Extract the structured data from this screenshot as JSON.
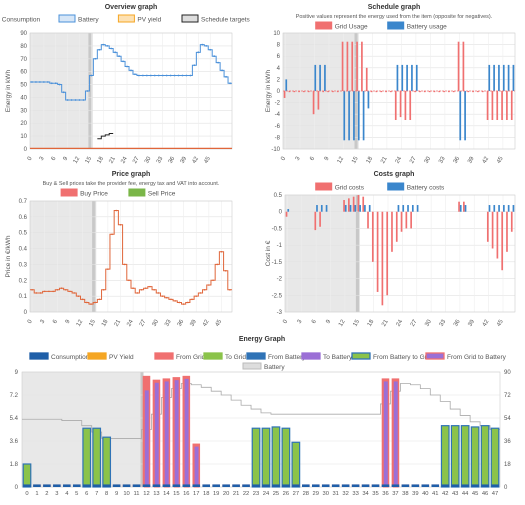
{
  "colors": {
    "consumption": "#1f5fa8",
    "battery": "#4a90d9",
    "pv": "#f5a623",
    "schedule": "#222222",
    "grid": "#f07070",
    "battery_usage": "#3a86cc",
    "buy": "#e0663a",
    "sell": "#7ab648",
    "from_grid": "#f07070",
    "to_grid": "#8bc34a",
    "from_battery": "#2f73b6",
    "to_battery": "#9b6fd6",
    "shade": "#e8e8e8",
    "now": "#c8c8c8"
  },
  "chart_data": [
    {
      "id": "overview",
      "type": "line",
      "title": "Overview graph",
      "subtitle": "",
      "ylabel": "Energy in kWh",
      "ylim": [
        0,
        90
      ],
      "yticks": [
        0,
        10,
        20,
        30,
        40,
        50,
        60,
        70,
        80,
        90
      ],
      "xticks": [
        "0",
        "3",
        "6",
        "9",
        "12",
        "15",
        "18",
        "21",
        "24",
        "27",
        "30",
        "33",
        "36",
        "39",
        "42",
        "45"
      ],
      "legend": [
        "Consumption",
        "Battery",
        "PV yield",
        "Schedule targets"
      ],
      "series": [
        {
          "name": "Battery",
          "values": [
            52,
            52,
            52,
            52,
            52,
            51,
            51,
            50,
            44,
            38,
            38,
            38,
            38,
            38,
            45,
            57,
            70,
            77,
            81,
            80,
            78,
            75,
            72,
            68,
            64,
            61,
            58,
            57,
            57,
            57,
            57,
            57,
            57,
            57,
            57,
            57,
            57,
            57,
            57,
            57,
            57,
            65,
            75,
            81,
            80,
            77,
            72,
            67,
            61,
            56,
            51
          ]
        },
        {
          "name": "Schedule targets",
          "values": [
            null,
            null,
            null,
            null,
            null,
            null,
            null,
            null,
            null,
            null,
            null,
            null,
            null,
            null,
            null,
            null,
            null,
            8,
            10,
            11,
            12,
            null,
            null,
            null,
            null,
            null,
            null,
            null,
            null,
            null,
            null,
            null,
            null,
            null,
            null,
            null,
            null,
            null,
            null,
            null,
            null,
            null,
            null,
            null,
            null,
            null,
            null,
            null,
            null,
            null,
            null
          ]
        },
        {
          "name": "Consumption",
          "values": [
            0.5,
            0.5,
            0.5,
            0.5,
            0.5,
            0.5,
            0.5,
            0.5,
            0.5,
            0.5,
            0.5,
            0.5,
            0.5,
            0.5,
            0.5,
            0.5,
            0.5,
            0.5,
            0.5,
            0.5,
            0.5,
            0.5,
            0.5,
            0.5,
            0.5,
            0.5,
            0.5,
            0.5,
            0.5,
            0.5,
            0.5,
            0.5,
            0.5,
            0.5,
            0.5,
            0.5,
            0.5,
            0.5,
            0.5,
            0.5,
            0.5,
            0.5,
            0.5,
            0.5,
            0.5,
            0.5,
            0.5,
            0.5,
            0.5,
            0.5,
            0.5
          ]
        }
      ]
    },
    {
      "id": "schedule",
      "type": "bar",
      "title": "Schedule graph",
      "subtitle": "Positive values represent the energy used from the item (opposite for negatives).",
      "ylabel": "Energy in kWh",
      "ylim": [
        -10,
        10
      ],
      "yticks": [
        -10,
        -8,
        -6,
        -4,
        -2,
        0,
        2,
        4,
        6,
        8,
        10
      ],
      "xticks": [
        "0",
        "3",
        "6",
        "9",
        "12",
        "15",
        "18",
        "21",
        "24",
        "27",
        "30",
        "33",
        "36",
        "39",
        "42",
        "45"
      ],
      "legend": [
        "Grid Usage",
        "Battery usage"
      ],
      "series": [
        {
          "name": "Grid Usage",
          "values": [
            -1.2,
            -0.2,
            -0.2,
            -0.2,
            -0.2,
            -0.2,
            -4,
            -3.2,
            -0.2,
            -0.2,
            -0.2,
            -0.2,
            8.5,
            8.5,
            8.5,
            8.5,
            8.5,
            4,
            -0.2,
            -0.2,
            -0.2,
            -0.2,
            -0.2,
            -5,
            -4.5,
            -5,
            -5,
            -0.2,
            -0.2,
            -0.2,
            -0.2,
            -0.2,
            -0.2,
            -0.2,
            -0.2,
            -0.2,
            8.5,
            8.5,
            -0.2,
            -0.2,
            -0.2,
            -0.2,
            -5,
            -5,
            -5,
            -5,
            -5,
            -5
          ]
        },
        {
          "name": "Battery usage",
          "values": [
            2,
            0,
            0,
            0,
            0,
            0,
            4.5,
            4.5,
            4.5,
            0,
            0,
            0,
            -8.5,
            -8.5,
            -8.5,
            -8.5,
            -8.5,
            -3,
            0,
            0,
            0,
            0,
            0,
            4.5,
            4.5,
            4.5,
            4.5,
            4.5,
            0,
            0,
            0,
            0,
            0,
            0,
            0,
            0,
            -8.5,
            -8.5,
            0,
            0,
            0,
            0,
            4.5,
            4.5,
            4.5,
            4.5,
            4.5,
            4.5
          ]
        }
      ]
    },
    {
      "id": "price",
      "type": "line",
      "title": "Price graph",
      "subtitle": "Buy & Sell prices take the provider fee, energy tax and VAT into account.",
      "ylabel": "Price in €/kWh",
      "ylim": [
        0,
        0.7
      ],
      "yticks": [
        0,
        0.1,
        0.2,
        0.3,
        0.4,
        0.5,
        0.6,
        0.7
      ],
      "xticks": [
        "0",
        "3",
        "6",
        "9",
        "12",
        "15",
        "18",
        "21",
        "24",
        "27",
        "30",
        "33",
        "36",
        "39",
        "42",
        "45"
      ],
      "legend": [
        "Buy Price",
        "Sell Price"
      ],
      "series": [
        {
          "name": "Buy Price",
          "values": [
            0.14,
            0.12,
            0.12,
            0.13,
            0.13,
            0.13,
            0.14,
            0.15,
            0.14,
            0.13,
            0.12,
            0.1,
            0.08,
            0.06,
            0.05,
            0.06,
            0.08,
            0.14,
            0.27,
            0.49,
            0.64,
            0.55,
            0.3,
            0.2,
            0.15,
            0.12,
            0.14,
            0.15,
            0.16,
            0.14,
            0.12,
            0.1,
            0.09,
            0.08,
            0.07,
            0.06,
            0.05,
            0.06,
            0.08,
            0.1,
            0.12,
            0.14,
            0.17,
            0.2,
            0.3,
            0.38,
            0.26,
            0.14
          ]
        },
        {
          "name": "Sell Price",
          "values": [
            0.14,
            0.12,
            0.12,
            0.13,
            0.13,
            0.13,
            0.14,
            0.15,
            0.14,
            0.13,
            0.12,
            0.1,
            0.08,
            0.06,
            0.05,
            0.06,
            0.08,
            0.14,
            0.27,
            0.49,
            0.64,
            0.55,
            0.3,
            0.2,
            0.15,
            0.12,
            0.14,
            0.15,
            0.16,
            0.14,
            0.12,
            0.1,
            0.09,
            0.08,
            0.07,
            0.06,
            0.05,
            0.06,
            0.08,
            0.1,
            0.12,
            0.14,
            0.17,
            0.2,
            0.3,
            0.38,
            0.26,
            0.14
          ]
        }
      ]
    },
    {
      "id": "costs",
      "type": "bar",
      "title": "Costs graph",
      "subtitle": "",
      "ylabel": "Cost in €",
      "ylim": [
        -3,
        0.5
      ],
      "yticks": [
        -3,
        -2.5,
        -2,
        -1.5,
        -1,
        -0.5,
        0,
        0.5
      ],
      "xticks": [
        "0",
        "3",
        "6",
        "9",
        "12",
        "15",
        "18",
        "21",
        "24",
        "27",
        "30",
        "33",
        "36",
        "39",
        "42",
        "45"
      ],
      "legend": [
        "Grid costs",
        "Battery costs"
      ],
      "series": [
        {
          "name": "Grid costs",
          "values": [
            -0.15,
            0,
            0,
            0,
            0,
            0,
            -0.55,
            -0.45,
            0,
            0,
            0,
            0,
            0.35,
            0.4,
            0.45,
            0.5,
            0.45,
            -0.5,
            -1.5,
            -2.4,
            -2.8,
            -2.5,
            -1.2,
            -0.9,
            -0.6,
            -0.5,
            -0.5,
            0,
            0,
            0,
            0,
            0,
            0,
            0,
            0,
            0,
            0.3,
            0.3,
            0,
            0,
            0,
            0,
            -0.9,
            -1.1,
            -1.4,
            -1.75,
            -1.2,
            -0.6
          ]
        },
        {
          "name": "Battery costs",
          "values": [
            0.08,
            0,
            0,
            0,
            0,
            0,
            0.2,
            0.2,
            0.2,
            0,
            0,
            0,
            0.2,
            0.2,
            0.2,
            0.2,
            0.2,
            0.2,
            0,
            0,
            0,
            0,
            0,
            0.2,
            0.2,
            0.2,
            0.2,
            0.2,
            0,
            0,
            0,
            0,
            0,
            0,
            0,
            0,
            0.2,
            0.2,
            0,
            0,
            0,
            0,
            0.2,
            0.2,
            0.2,
            0.2,
            0.2,
            0.2
          ]
        }
      ]
    },
    {
      "id": "energy",
      "type": "bar",
      "title": "Energy Graph",
      "subtitle": "",
      "ylim": [
        0,
        9
      ],
      "yticks": [
        "0",
        "1.8",
        "3.6",
        "5.4",
        "7.2",
        "9"
      ],
      "y2ticks": [
        "0",
        "18",
        "36",
        "54",
        "72",
        "90"
      ],
      "xticks": [
        "0",
        "1",
        "2",
        "3",
        "4",
        "5",
        "6",
        "7",
        "8",
        "9",
        "10",
        "11",
        "12",
        "13",
        "14",
        "15",
        "16",
        "17",
        "18",
        "19",
        "20",
        "21",
        "22",
        "23",
        "24",
        "25",
        "26",
        "27",
        "28",
        "29",
        "30",
        "31",
        "32",
        "33",
        "34",
        "35",
        "36",
        "37",
        "38",
        "39",
        "40",
        "41",
        "42",
        "43",
        "44",
        "45",
        "46",
        "47"
      ],
      "legend": [
        "Consumption",
        "PV Yield",
        "From Grid",
        "To Grid",
        "From Battery",
        "To Battery",
        "From Battery to Grid",
        "From Grid to Battery",
        "Battery"
      ],
      "from_grid": [
        0,
        0.2,
        0.2,
        0.2,
        0.2,
        0.2,
        0,
        0,
        0,
        0.2,
        0.2,
        0.2,
        8.7,
        8.4,
        8.5,
        8.6,
        8.7,
        3.4,
        0.2,
        0.2,
        0.2,
        0.2,
        0.2,
        0,
        0,
        0,
        0,
        0.2,
        0.2,
        0.2,
        0.2,
        0.2,
        0.2,
        0.2,
        0.2,
        0.2,
        8.5,
        8.5,
        0.2,
        0.2,
        0.2,
        0.2,
        0,
        0,
        0,
        0,
        0,
        0
      ],
      "to_grid": [
        1.8,
        0,
        0,
        0,
        0,
        0,
        4.6,
        4.6,
        3.9,
        0,
        0,
        0,
        0,
        0,
        0,
        0,
        0,
        0,
        0,
        0,
        0,
        0,
        0,
        4.6,
        4.6,
        4.7,
        4.6,
        3.5,
        0,
        0,
        0,
        0,
        0,
        0,
        0,
        0,
        0,
        0,
        0,
        0,
        0,
        0,
        4.8,
        4.8,
        4.8,
        4.7,
        4.8,
        4.6
      ],
      "to_battery": [
        0,
        0,
        0,
        0,
        0,
        0,
        0,
        0,
        0,
        0,
        0,
        0,
        7.6,
        8.2,
        8.3,
        8.4,
        8.5,
        3.2,
        0,
        0,
        0,
        0,
        0,
        0,
        0,
        0,
        0,
        0,
        0,
        0,
        0,
        0,
        0,
        0,
        0,
        0,
        8.3,
        8.3,
        0,
        0,
        0,
        0,
        0,
        0,
        0,
        0,
        0,
        0
      ],
      "battery": [
        53,
        53,
        53,
        53,
        52,
        52,
        48,
        43,
        38,
        38,
        38,
        38,
        45,
        57,
        70,
        77,
        81,
        80,
        78,
        75,
        72,
        68,
        64,
        61,
        58,
        57,
        57,
        57,
        57,
        57,
        57,
        57,
        57,
        57,
        57,
        57,
        65,
        75,
        81,
        80,
        77,
        72,
        67,
        61,
        56,
        51,
        48,
        45
      ]
    }
  ]
}
